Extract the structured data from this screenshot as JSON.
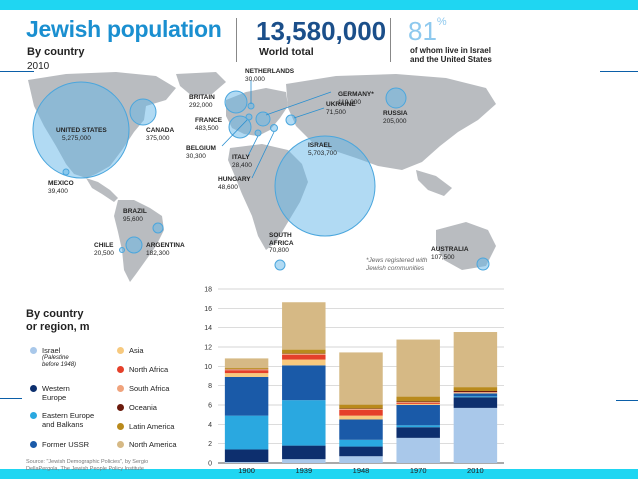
{
  "header": {
    "title": "Jewish population",
    "subtitle": "By country",
    "year": "2010",
    "world_total_value": "13,580,000",
    "world_total_label": "World total",
    "pct_value": "81",
    "pct_symbol": "%",
    "pct_label_line1": "of whom live in Israel",
    "pct_label_line2": "and the United States"
  },
  "map": {
    "countries": [
      {
        "key": "us",
        "name": "UNITED STATES",
        "value": "5,275,000"
      },
      {
        "key": "canada",
        "name": "CANADA",
        "value": "375,000"
      },
      {
        "key": "mexico",
        "name": "MEXICO",
        "value": "39,400"
      },
      {
        "key": "brazil",
        "name": "BRAZIL",
        "value": "95,600"
      },
      {
        "key": "chile",
        "name": "CHILE",
        "value": "20,500"
      },
      {
        "key": "argentina",
        "name": "ARGENTINA",
        "value": "182,300"
      },
      {
        "key": "britain",
        "name": "BRITAIN",
        "value": "292,000"
      },
      {
        "key": "netherlands",
        "name": "NETHERLANDS",
        "value": "30,000"
      },
      {
        "key": "france",
        "name": "FRANCE",
        "value": "483,500"
      },
      {
        "key": "belgium",
        "name": "BELGIUM",
        "value": "30,300"
      },
      {
        "key": "italy",
        "name": "ITALY",
        "value": "28,400"
      },
      {
        "key": "hungary",
        "name": "HUNGARY",
        "value": "48,600"
      },
      {
        "key": "germany",
        "name": "GERMANY*",
        "value": "119,000"
      },
      {
        "key": "ukraine",
        "name": "UKRAINE",
        "value": "71,500"
      },
      {
        "key": "russia",
        "name": "RUSSIA",
        "value": "205,000"
      },
      {
        "key": "israel",
        "name": "ISRAEL",
        "value": "5,703,700"
      },
      {
        "key": "south_africa",
        "name_line1": "SOUTH",
        "name_line2": "AFRICA",
        "value": "70,800"
      },
      {
        "key": "australia",
        "name": "AUSTRALIA",
        "value": "107,500"
      }
    ],
    "footnote_line1": "*Jews registered with",
    "footnote_line2": "Jewish communities"
  },
  "legend": {
    "title_line1": "By country",
    "title_line2": "or region, m",
    "items": [
      {
        "key": "israel",
        "label": "Israel",
        "note_line1": "(Palestine",
        "note_line2": "before 1948)",
        "color": "#a9c8ea"
      },
      {
        "key": "asia",
        "label": "Asia",
        "color": "#f7c97e"
      },
      {
        "key": "western_europe",
        "label_line1": "Western",
        "label_line2": "Europe",
        "color": "#0d2f6e"
      },
      {
        "key": "north_africa",
        "label": "North Africa",
        "color": "#e5402a"
      },
      {
        "key": "south_africa",
        "label": "South Africa",
        "color": "#f0a37c"
      },
      {
        "key": "eastern_europe",
        "label_line1": "Eastern Europe",
        "label_line2": "and Balkans",
        "color": "#2aa8e0"
      },
      {
        "key": "oceania",
        "label": "Oceania",
        "color": "#6b1a0c"
      },
      {
        "key": "latin_america",
        "label": "Latin America",
        "color": "#b98a1c"
      },
      {
        "key": "former_ussr",
        "label": "Former USSR",
        "color": "#1a5aa8"
      },
      {
        "key": "north_america",
        "label": "North America",
        "color": "#d6b985"
      }
    ]
  },
  "source": {
    "line1": "Source: \"Jewish Demographic Policies\", by Sergio",
    "line2": "DellaPergola, The Jewish People Policy Institute"
  },
  "chart_data": {
    "type": "bar",
    "stacked": true,
    "title": "By country or region, m",
    "categories": [
      "1900",
      "1939",
      "1948",
      "1970",
      "2010"
    ],
    "ylim": [
      0,
      18
    ],
    "yticks": [
      "0",
      "2",
      "4",
      "6",
      "8",
      "10",
      "12",
      "14",
      "16",
      "18"
    ],
    "grid": true,
    "series": [
      {
        "name": "Israel (Palestine before 1948)",
        "color": "#a9c8ea",
        "values": [
          0.1,
          0.4,
          0.7,
          2.6,
          5.7
        ]
      },
      {
        "name": "Western Europe",
        "color": "#0d2f6e",
        "values": [
          1.3,
          1.4,
          1.0,
          1.1,
          1.1
        ]
      },
      {
        "name": "Eastern Europe and Balkans",
        "color": "#2aa8e0",
        "values": [
          3.5,
          4.7,
          0.7,
          0.2,
          0.1
        ]
      },
      {
        "name": "Former USSR",
        "color": "#1a5aa8",
        "values": [
          4.0,
          3.6,
          2.1,
          2.1,
          0.3
        ]
      },
      {
        "name": "Asia",
        "color": "#f7c97e",
        "values": [
          0.4,
          0.6,
          0.4,
          0.1,
          0.05
        ]
      },
      {
        "name": "North Africa",
        "color": "#e5402a",
        "values": [
          0.3,
          0.5,
          0.6,
          0.1,
          0.02
        ]
      },
      {
        "name": "South Africa",
        "color": "#f0a37c",
        "values": [
          0.1,
          0.1,
          0.1,
          0.1,
          0.07
        ]
      },
      {
        "name": "Oceania",
        "color": "#6b1a0c",
        "values": [
          0.02,
          0.03,
          0.04,
          0.07,
          0.11
        ]
      },
      {
        "name": "Latin America",
        "color": "#b98a1c",
        "values": [
          0.1,
          0.4,
          0.4,
          0.5,
          0.4
        ]
      },
      {
        "name": "North America",
        "color": "#d6b985",
        "values": [
          1.0,
          4.9,
          5.4,
          5.9,
          5.7
        ]
      }
    ]
  }
}
